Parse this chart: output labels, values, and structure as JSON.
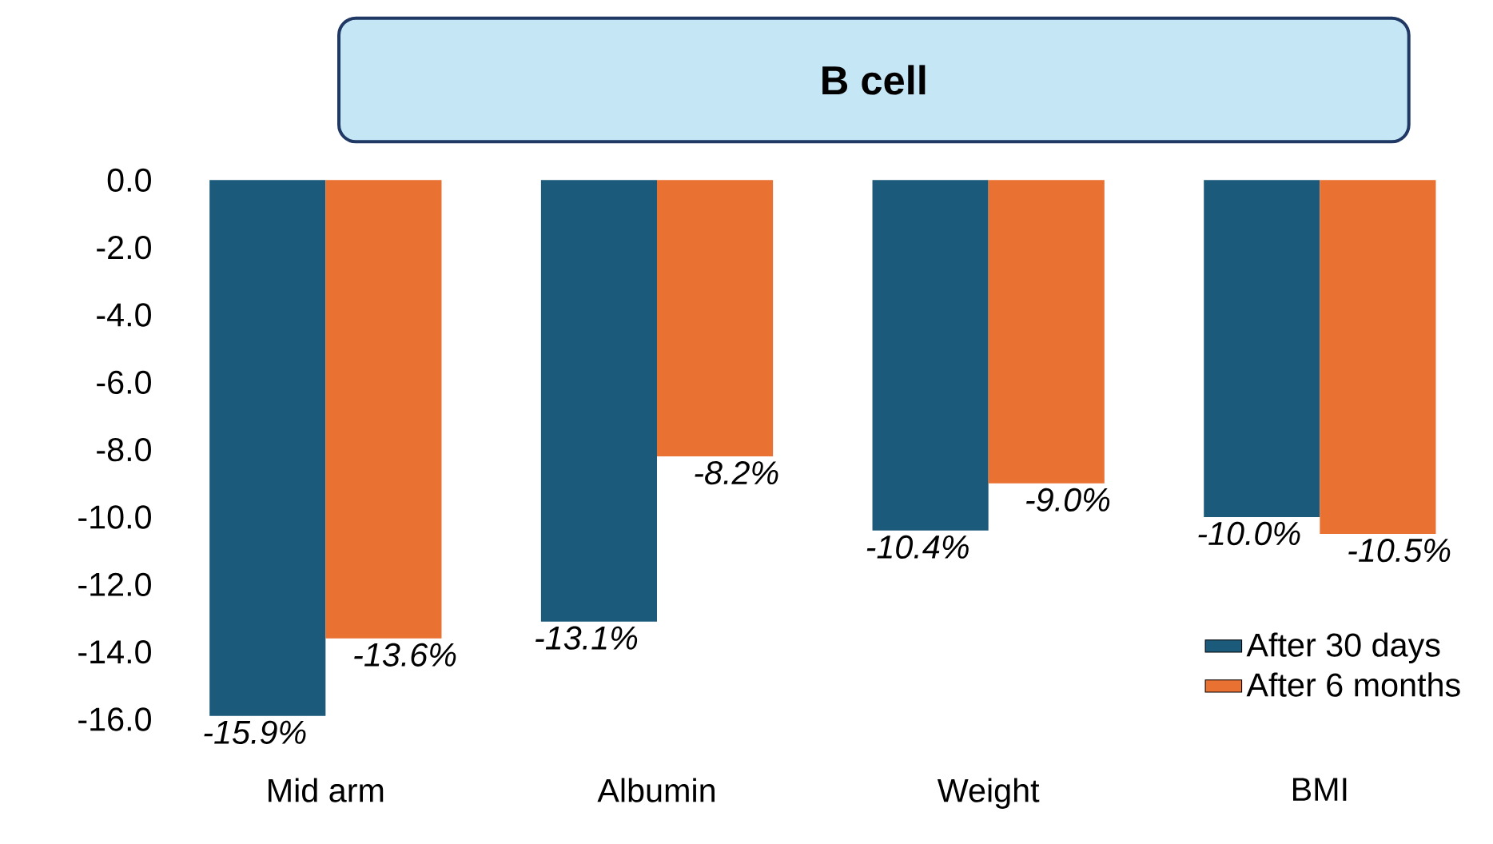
{
  "chart_data": {
    "type": "bar",
    "title": "B cell",
    "categories": [
      "Mid arm",
      "Albumin",
      "Weight",
      "BMI"
    ],
    "series": [
      {
        "name": "After 30 days",
        "color": "#1b5a7a",
        "values": [
          -15.9,
          -13.1,
          -10.4,
          -10.0
        ],
        "value_labels": [
          "-15.9%",
          "-13.1%",
          "-10.4%",
          "-10.0%"
        ]
      },
      {
        "name": "After 6 months",
        "color": "#e97132",
        "values": [
          -13.6,
          -8.2,
          -9.0,
          -10.5
        ],
        "value_labels": [
          "-13.6%",
          "-8.2%",
          "-9.0%",
          "-10.5%"
        ]
      }
    ],
    "ylim": [
      -16,
      0
    ],
    "yticks": [
      {
        "value": 0,
        "label": "0.0"
      },
      {
        "value": -2,
        "label": "-2.0"
      },
      {
        "value": -4,
        "label": "-4.0"
      },
      {
        "value": -6,
        "label": "-6.0"
      },
      {
        "value": -8,
        "label": "-8.0"
      },
      {
        "value": -10,
        "label": "-10.0"
      },
      {
        "value": -12,
        "label": "-12.0"
      },
      {
        "value": -14,
        "label": "-14.0"
      },
      {
        "value": -16,
        "label": "-16.0"
      }
    ],
    "legend": "bottom right"
  }
}
